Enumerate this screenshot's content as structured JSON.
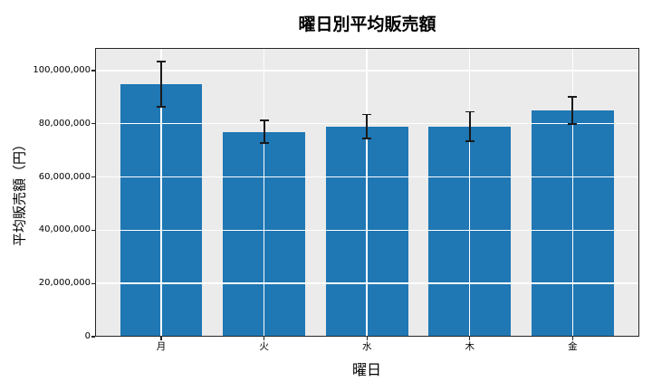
{
  "figure": {
    "title": "曜日別平均販売額"
  },
  "chart_data": {
    "type": "bar",
    "title": "曜日別平均販売額",
    "xlabel": "曜日",
    "ylabel": "平均販売額（円）",
    "categories": [
      "月",
      "火",
      "水",
      "木",
      "金"
    ],
    "values": [
      95000000,
      77000000,
      79000000,
      79000000,
      85000000
    ],
    "errors": [
      8500000,
      4200000,
      4500000,
      5500000,
      5200000
    ],
    "ylim": [
      0,
      108500000
    ],
    "yticks": [
      0,
      20000000,
      40000000,
      60000000,
      80000000,
      100000000
    ],
    "ytick_labels": [
      "0",
      "20,000,000",
      "40,000,000",
      "60,000,000",
      "80,000,000",
      "100,000,000"
    ],
    "grid": true,
    "grid_on_top": true,
    "legend": null,
    "colors": {
      "bar": "#1f77b4",
      "plot_background": "#ebebeb",
      "grid": "#ffffff",
      "error_bar": "#1a1a1a",
      "spine": "#262626",
      "text": "#000000"
    }
  }
}
